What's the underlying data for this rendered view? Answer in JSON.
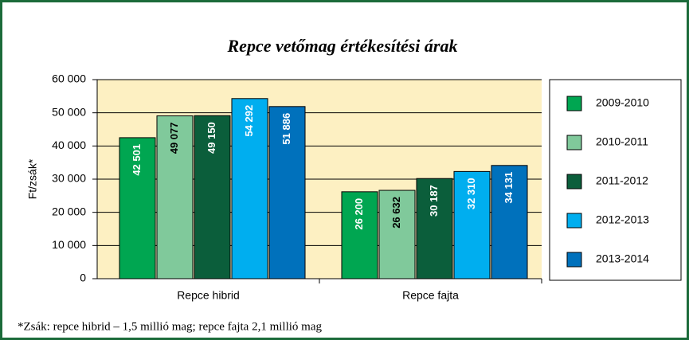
{
  "chart_data": {
    "type": "bar",
    "title": "Repce vetőmag értékesítési árak",
    "y_label": "Ft/zsák*",
    "categories": [
      "Repce hibrid",
      "Repce fajta"
    ],
    "series": [
      {
        "name": "2009-2010",
        "color": "#00a651",
        "values": [
          42501,
          26200
        ],
        "value_labels": [
          "42 501",
          "26 200"
        ]
      },
      {
        "name": "2010-2011",
        "color": "#80c99b",
        "values": [
          49077,
          26632
        ],
        "value_labels": [
          "49 077",
          "26 632"
        ]
      },
      {
        "name": "2011-2012",
        "color": "#0b5e3b",
        "values": [
          49150,
          30187
        ],
        "value_labels": [
          "49 150",
          "30 187"
        ]
      },
      {
        "name": "2012-2013",
        "color": "#00aeef",
        "values": [
          54292,
          32310
        ],
        "value_labels": [
          "54 292",
          "32 310"
        ]
      },
      {
        "name": "2013-2014",
        "color": "#0071bc",
        "values": [
          51886,
          34131
        ],
        "value_labels": [
          "51 886",
          "34 131"
        ]
      }
    ],
    "ylim": [
      0,
      60000
    ],
    "yticks": [
      0,
      {
        "value": 10000,
        "label": "10 000"
      },
      {
        "value": 20000,
        "label": "20 000"
      },
      {
        "value": 30000,
        "label": "30 000"
      },
      {
        "value": 40000,
        "label": "40 000"
      },
      {
        "value": 50000,
        "label": "50 000"
      },
      {
        "value": 60000,
        "label": "60 000"
      }
    ],
    "grid": true,
    "legend": "right",
    "footnote": "*Zsák: repce hibrid – 1,5 millió mag; repce fajta 2,1 millió mag"
  }
}
